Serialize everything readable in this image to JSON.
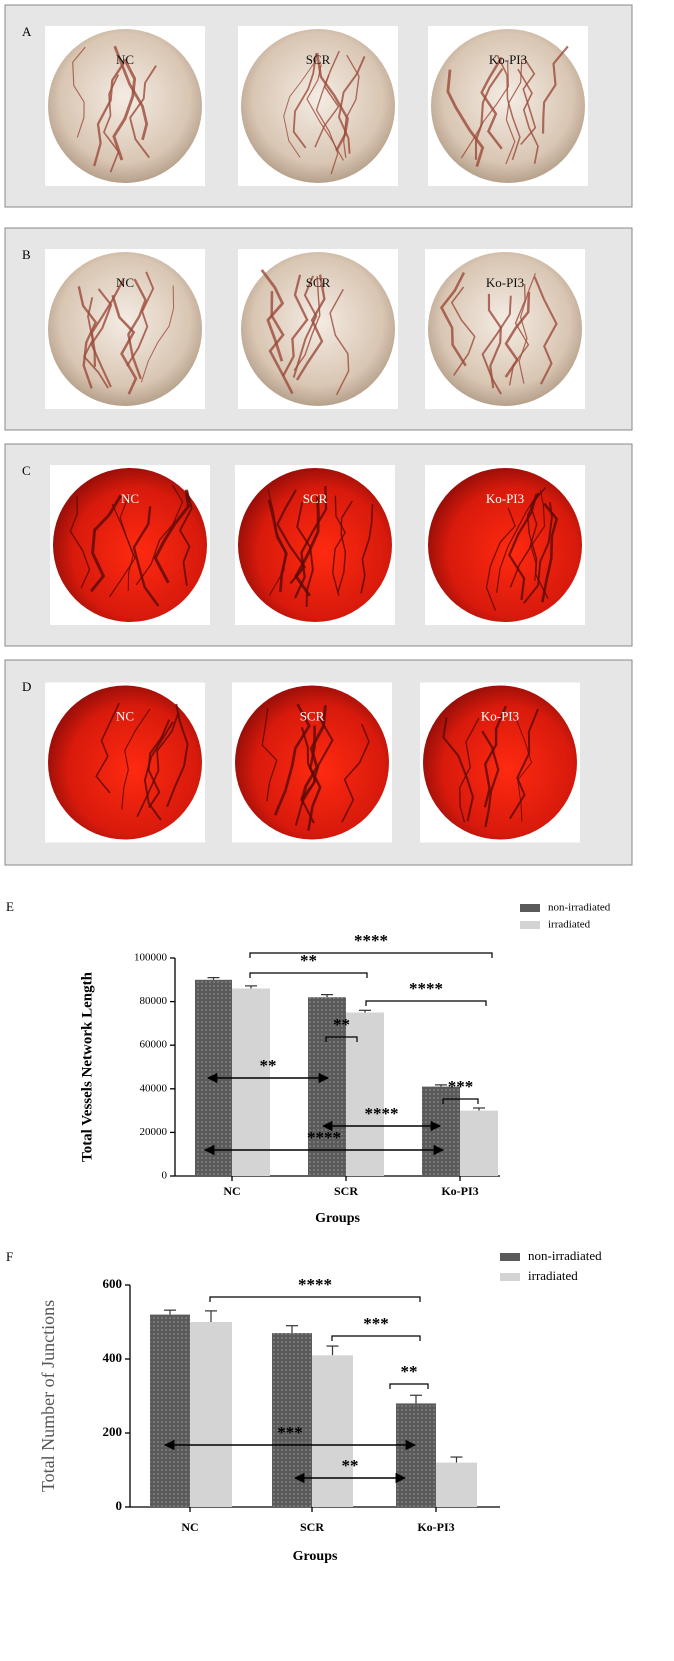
{
  "panels": [
    {
      "label": "A",
      "images": [
        {
          "label": "NC"
        },
        {
          "label": "SCR"
        },
        {
          "label": "Ko-PI3"
        }
      ]
    },
    {
      "label": "B",
      "images": [
        {
          "label": "NC"
        },
        {
          "label": "SCR"
        },
        {
          "label": "Ko-PI3"
        }
      ]
    },
    {
      "label": "C",
      "images": [
        {
          "label": "NC"
        },
        {
          "label": "SCR"
        },
        {
          "label": "Ko-PI3"
        }
      ]
    },
    {
      "label": "D",
      "images": [
        {
          "label": "NC"
        },
        {
          "label": "SCR"
        },
        {
          "label": "Ko-PI3"
        }
      ]
    }
  ],
  "chart_data": [
    {
      "type": "bar",
      "panel_label": "E",
      "x_label": "Groups",
      "y_label": "Total Vessels Network Length",
      "categories": [
        "NC",
        "SCR",
        "Ko-PI3"
      ],
      "series": [
        {
          "name": "non-irradiated",
          "color": "#5a5a5a",
          "values": [
            90000,
            82000,
            41000
          ],
          "errors": [
            1000,
            1200,
            800
          ]
        },
        {
          "name": "irradiated",
          "color": "#d4d4d4",
          "values": [
            86000,
            75000,
            30000
          ],
          "errors": [
            1200,
            1000,
            1200
          ]
        }
      ],
      "ylim": [
        0,
        100000
      ],
      "yticks": [
        0,
        20000,
        40000,
        60000,
        80000,
        100000
      ],
      "annotations": [
        "****",
        "**",
        "****",
        "**",
        "***",
        "**",
        "****",
        "****"
      ]
    },
    {
      "type": "bar",
      "panel_label": "F",
      "x_label": "Groups",
      "y_label": "Total Number of Junctions",
      "categories": [
        "NC",
        "SCR",
        "Ko-PI3"
      ],
      "series": [
        {
          "name": "non-irradiated",
          "color": "#5a5a5a",
          "values": [
            520,
            470,
            280
          ],
          "errors": [
            12,
            20,
            22
          ]
        },
        {
          "name": "irradiated",
          "color": "#d4d4d4",
          "values": [
            500,
            410,
            120
          ],
          "errors": [
            30,
            25,
            15
          ]
        }
      ],
      "ylim": [
        0,
        600
      ],
      "yticks": [
        0,
        200,
        400,
        600
      ],
      "annotations": [
        "****",
        "***",
        "**",
        "***",
        "**"
      ]
    }
  ]
}
